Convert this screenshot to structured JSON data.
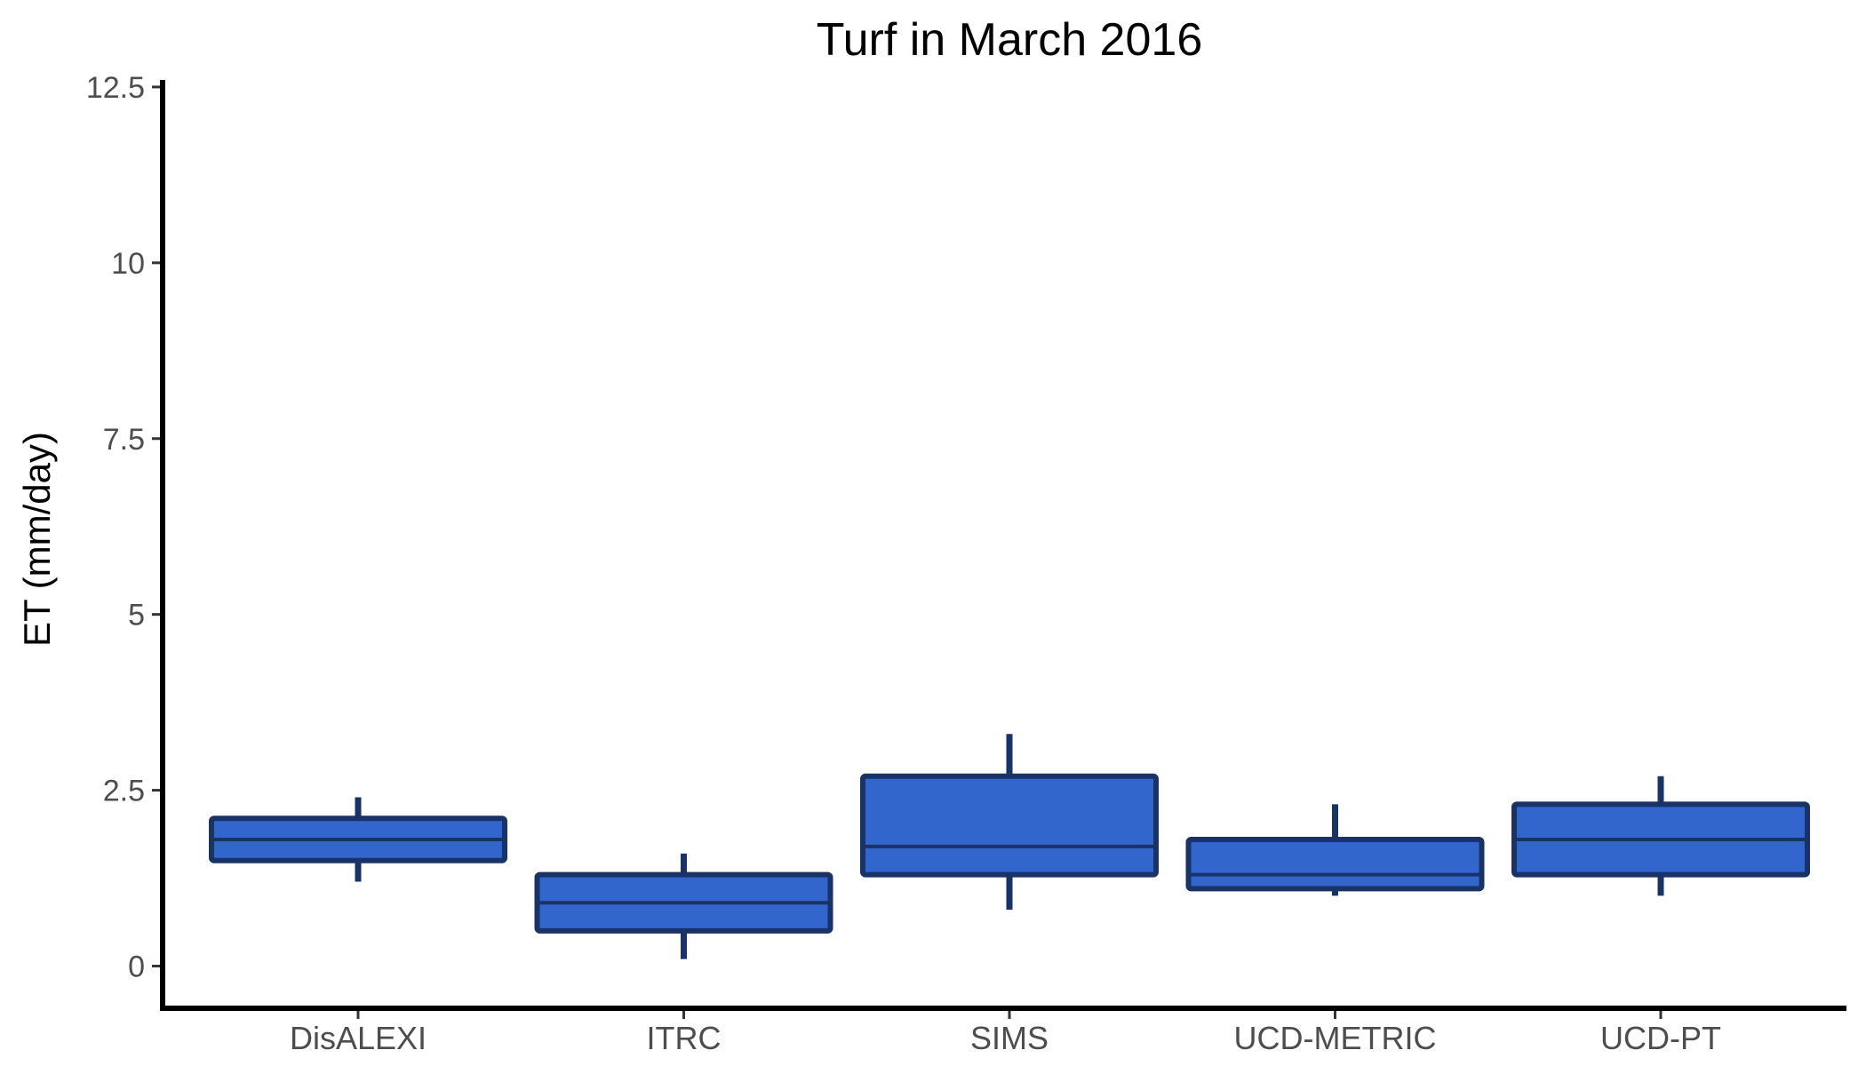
{
  "chart_data": {
    "type": "boxplot",
    "title": "Turf in March 2016",
    "xlabel": "",
    "ylabel": "ET (mm/day)",
    "ylim": [
      -0.6,
      12.6
    ],
    "yticks": [
      {
        "value": 0,
        "label": "0"
      },
      {
        "value": 2.5,
        "label": "2.5"
      },
      {
        "value": 5,
        "label": "5"
      },
      {
        "value": 7.5,
        "label": "7.5"
      },
      {
        "value": 10,
        "label": "10"
      },
      {
        "value": 12.5,
        "label": "12.5"
      }
    ],
    "grid": false,
    "legend": "none",
    "colors": {
      "box_fill": "#3366cc",
      "box_stroke": "#1a3366",
      "axis": "#000000"
    },
    "categories": [
      "DisALEXI",
      "ITRC",
      "SIMS",
      "UCD-METRIC",
      "UCD-PT"
    ],
    "boxes": [
      {
        "category": "DisALEXI",
        "whisker_low": 1.2,
        "q1": 1.5,
        "median": 1.8,
        "q3": 2.1,
        "whisker_high": 2.4
      },
      {
        "category": "ITRC",
        "whisker_low": 0.1,
        "q1": 0.5,
        "median": 0.9,
        "q3": 1.3,
        "whisker_high": 1.6
      },
      {
        "category": "SIMS",
        "whisker_low": 0.8,
        "q1": 1.3,
        "median": 1.7,
        "q3": 2.7,
        "whisker_high": 3.3
      },
      {
        "category": "UCD-METRIC",
        "whisker_low": 1.0,
        "q1": 1.1,
        "median": 1.3,
        "q3": 1.8,
        "whisker_high": 2.3
      },
      {
        "category": "UCD-PT",
        "whisker_low": 1.0,
        "q1": 1.3,
        "median": 1.8,
        "q3": 2.3,
        "whisker_high": 2.7
      }
    ]
  }
}
